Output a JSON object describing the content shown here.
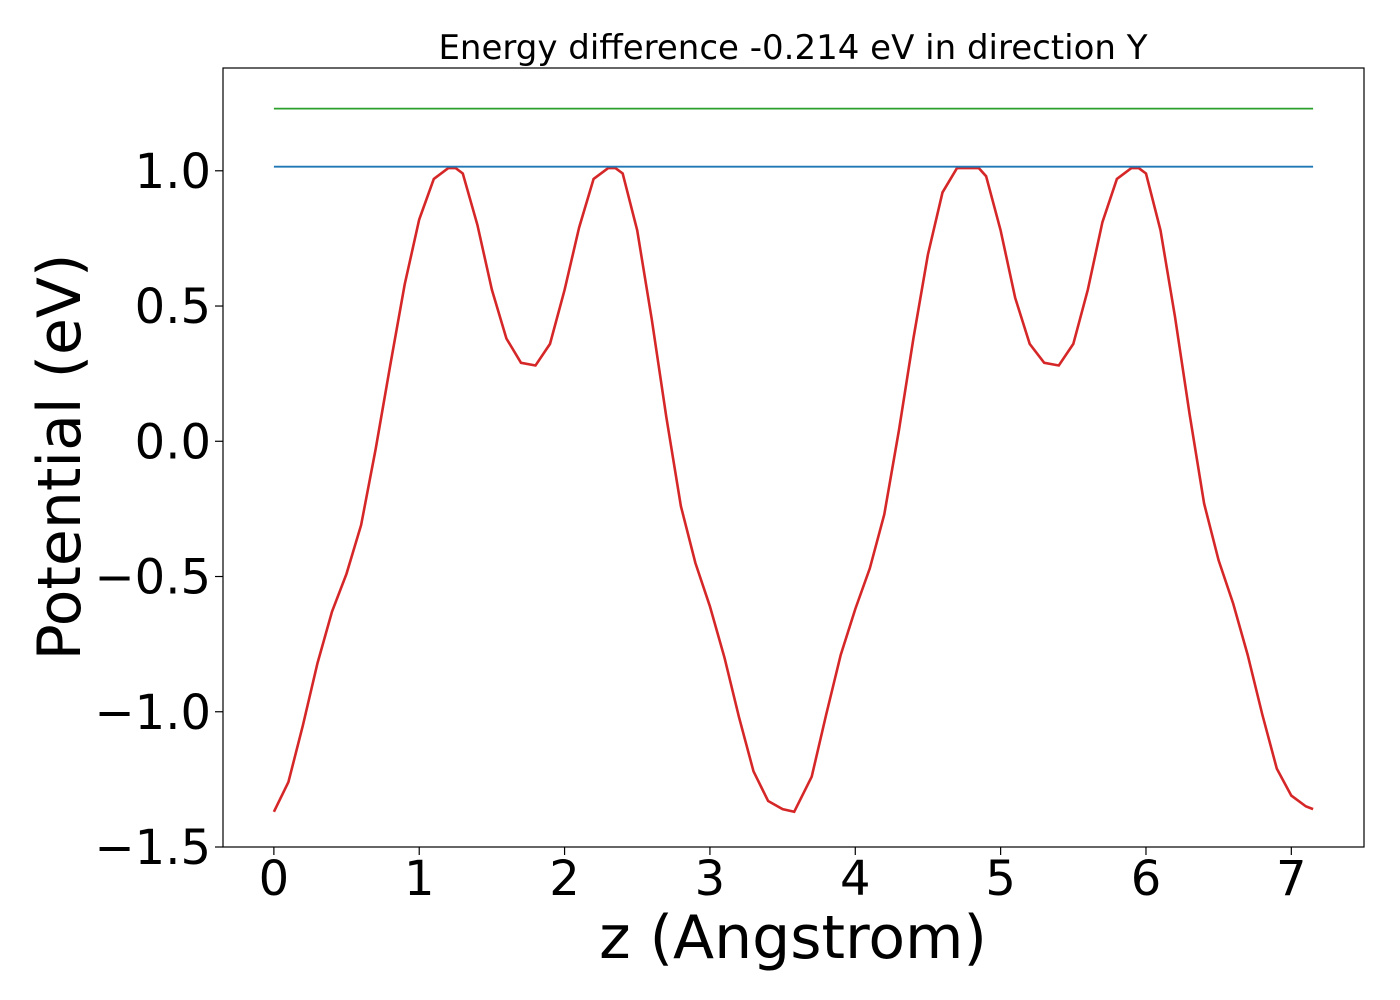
{
  "chart_data": {
    "type": "line",
    "title": "Energy difference -0.214 eV in direction Y",
    "xlabel": "z (Angstrom)",
    "ylabel": "Potential (eV)",
    "xlim": [
      -0.35,
      7.5
    ],
    "ylim": [
      -1.5,
      1.38
    ],
    "xticks": [
      0,
      1,
      2,
      3,
      4,
      5,
      6,
      7
    ],
    "xtick_labels": [
      "0",
      "1",
      "2",
      "3",
      "4",
      "5",
      "6",
      "7"
    ],
    "yticks": [
      -1.5,
      -1.0,
      -0.5,
      0.0,
      0.5,
      1.0
    ],
    "ytick_labels": [
      "−1.5",
      "−1.0",
      "−0.5",
      "0.0",
      "0.5",
      "1.0"
    ],
    "grid": false,
    "series": [
      {
        "color": "#d62728",
        "x": [
          0,
          0.1,
          0.2,
          0.3,
          0.4,
          0.5,
          0.6,
          0.7,
          0.8,
          0.9,
          1.0,
          1.1,
          1.2,
          1.25,
          1.3,
          1.4,
          1.5,
          1.6,
          1.7,
          1.8,
          1.9,
          2.0,
          2.1,
          2.2,
          2.3,
          2.35,
          2.4,
          2.5,
          2.6,
          2.7,
          2.8,
          2.9,
          3.0,
          3.1,
          3.2,
          3.3,
          3.4,
          3.5,
          3.58,
          3.7,
          3.8,
          3.9,
          4.0,
          4.1,
          4.2,
          4.3,
          4.4,
          4.5,
          4.6,
          4.7,
          4.8,
          4.85,
          4.9,
          5.0,
          5.1,
          5.2,
          5.3,
          5.4,
          5.5,
          5.6,
          5.7,
          5.8,
          5.9,
          5.95,
          6.0,
          6.1,
          6.2,
          6.3,
          6.4,
          6.5,
          6.6,
          6.7,
          6.8,
          6.9,
          7.0,
          7.1,
          7.15
        ],
        "y": [
          -1.37,
          -1.26,
          -1.05,
          -0.82,
          -0.63,
          -0.49,
          -0.31,
          -0.03,
          0.28,
          0.58,
          0.82,
          0.97,
          1.01,
          1.01,
          0.99,
          0.8,
          0.56,
          0.38,
          0.29,
          0.28,
          0.36,
          0.56,
          0.79,
          0.97,
          1.01,
          1.01,
          0.99,
          0.78,
          0.45,
          0.09,
          -0.24,
          -0.45,
          -0.61,
          -0.8,
          -1.02,
          -1.22,
          -1.33,
          -1.36,
          -1.37,
          -1.24,
          -1.01,
          -0.79,
          -0.62,
          -0.47,
          -0.27,
          0.04,
          0.38,
          0.69,
          0.92,
          1.01,
          1.01,
          1.01,
          0.98,
          0.78,
          0.53,
          0.36,
          0.29,
          0.28,
          0.36,
          0.56,
          0.81,
          0.97,
          1.01,
          1.01,
          0.99,
          0.78,
          0.46,
          0.1,
          -0.23,
          -0.44,
          -0.6,
          -0.79,
          -1.01,
          -1.21,
          -1.31,
          -1.35,
          -1.36
        ]
      },
      {
        "color": "#1f77b4",
        "x": [
          0,
          7.15
        ],
        "y": [
          1.015,
          1.015
        ]
      },
      {
        "color": "#2ca02c",
        "x": [
          0,
          7.15
        ],
        "y": [
          1.23,
          1.23
        ]
      }
    ]
  }
}
